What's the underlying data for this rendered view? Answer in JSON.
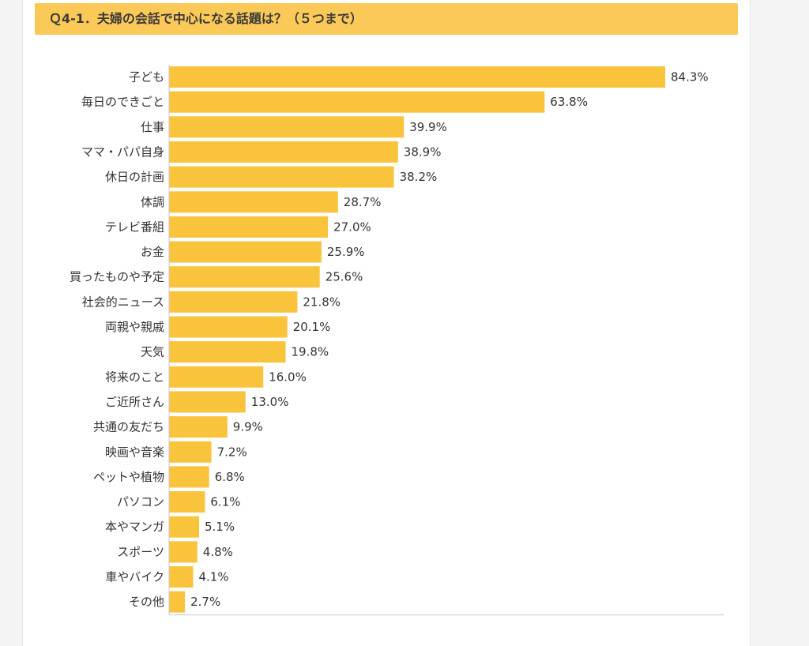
{
  "page": {
    "background": "#f4f4f4",
    "panel_background": "#ffffff"
  },
  "chart_data": {
    "type": "bar",
    "orientation": "horizontal",
    "title": "Ｑ4-1．夫婦の会話で中心になる話題は？（５つまで）",
    "value_suffix": "%",
    "xlim": [
      0,
      100
    ],
    "grid": false,
    "bar_color": "#f9c33c",
    "title_background": "#fac958",
    "categories": [
      "子ども",
      "毎日のできごと",
      "仕事",
      "ママ・パパ自身",
      "休日の計画",
      "体調",
      "テレビ番組",
      "お金",
      "買ったものや予定",
      "社会的ニュース",
      "両親や親戚",
      "天気",
      "将来のこと",
      "ご近所さん",
      "共通の友だち",
      "映画や音楽",
      "ペットや植物",
      "パソコン",
      "本やマンガ",
      "スポーツ",
      "車やバイク",
      "その他"
    ],
    "values": [
      84.3,
      63.8,
      39.9,
      38.9,
      38.2,
      28.7,
      27.0,
      25.9,
      25.6,
      21.8,
      20.1,
      19.8,
      16.0,
      13.0,
      9.9,
      7.2,
      6.8,
      6.1,
      5.1,
      4.8,
      4.1,
      2.7
    ],
    "value_labels": [
      "84.3%",
      "63.8%",
      "39.9%",
      "38.9%",
      "38.2%",
      "28.7%",
      "27.0%",
      "25.9%",
      "25.6%",
      "21.8%",
      "20.1%",
      "19.8%",
      "16.0%",
      "13.0%",
      "9.9%",
      "7.2%",
      "6.8%",
      "6.1%",
      "5.1%",
      "4.8%",
      "4.1%",
      "2.7%"
    ]
  }
}
